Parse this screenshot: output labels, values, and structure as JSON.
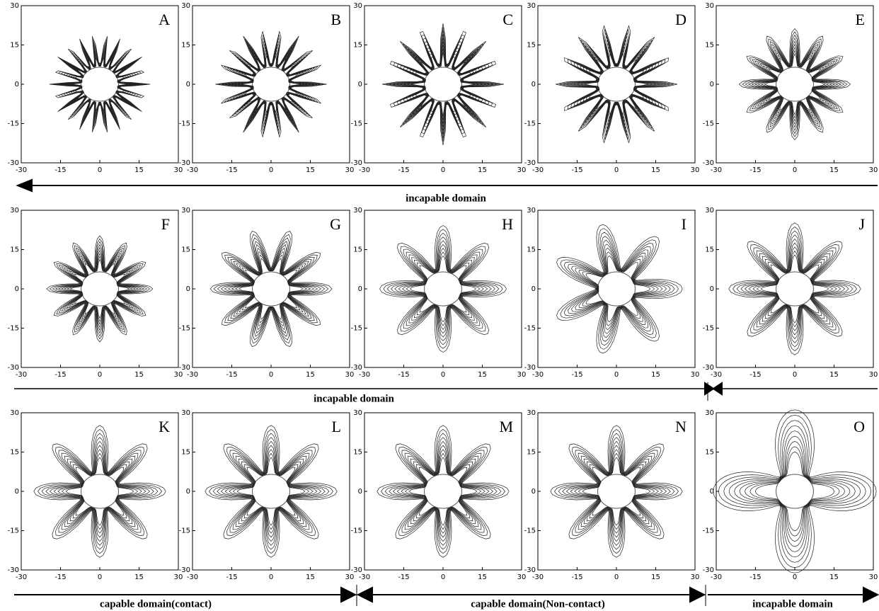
{
  "axis_ticks": [
    -30,
    -15,
    0,
    15,
    30
  ],
  "panels": [
    {
      "label": "A"
    },
    {
      "label": "B"
    },
    {
      "label": "C"
    },
    {
      "label": "D"
    },
    {
      "label": "E"
    },
    {
      "label": "F"
    },
    {
      "label": "G"
    },
    {
      "label": "H"
    },
    {
      "label": "I"
    },
    {
      "label": "J"
    },
    {
      "label": "K"
    },
    {
      "label": "L"
    },
    {
      "label": "M"
    },
    {
      "label": "N"
    },
    {
      "label": "O"
    }
  ],
  "domains": [
    {
      "text": "incapable domain"
    },
    {
      "text": "incapable domain"
    },
    {
      "text": "capable domain(contact)"
    },
    {
      "text": "capable domain(Non-contact)"
    },
    {
      "text": "incapable domain"
    }
  ]
}
